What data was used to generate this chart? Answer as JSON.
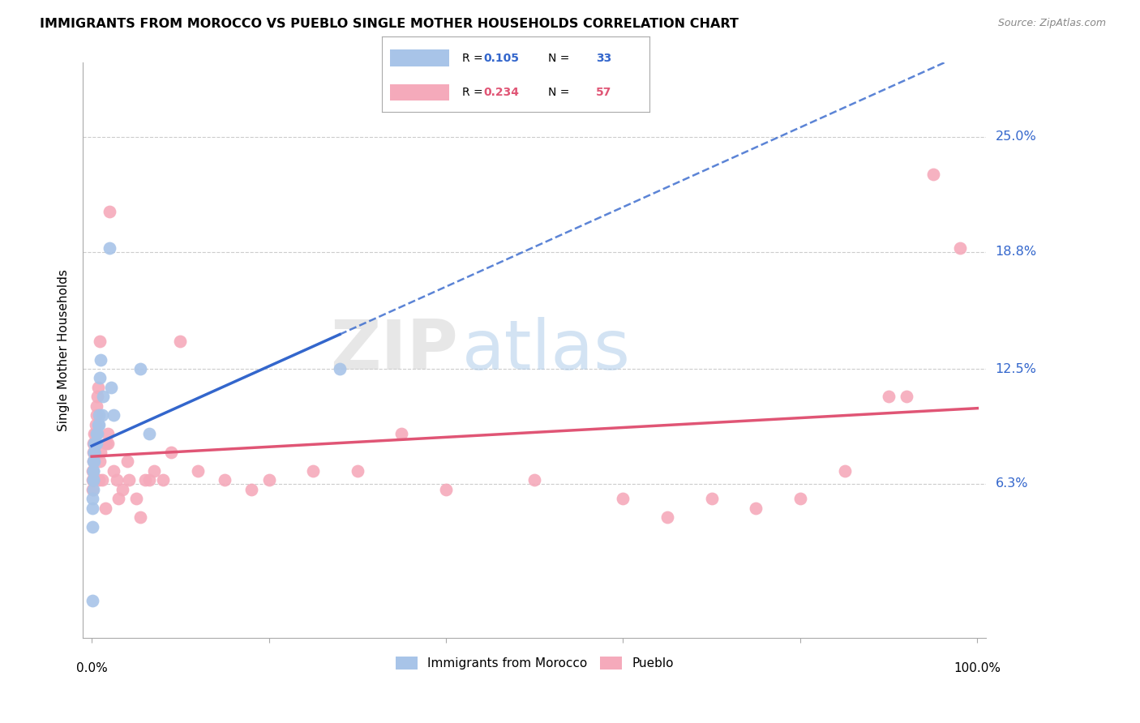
{
  "title": "IMMIGRANTS FROM MOROCCO VS PUEBLO SINGLE MOTHER HOUSEHOLDS CORRELATION CHART",
  "source": "Source: ZipAtlas.com",
  "ylabel": "Single Mother Households",
  "ytick_labels": [
    "25.0%",
    "18.8%",
    "12.5%",
    "6.3%"
  ],
  "ytick_values": [
    0.25,
    0.188,
    0.125,
    0.063
  ],
  "morocco_color": "#a8c4e8",
  "pueblo_color": "#f5aabb",
  "morocco_line_color": "#3366cc",
  "pueblo_line_color": "#e05575",
  "morocco_N": 33,
  "pueblo_N": 57,
  "morocco_R": 0.105,
  "pueblo_R": 0.234,
  "morocco_x": [
    0.001,
    0.001,
    0.001,
    0.001,
    0.002,
    0.002,
    0.002,
    0.002,
    0.002,
    0.002,
    0.003,
    0.003,
    0.003,
    0.003,
    0.003,
    0.004,
    0.004,
    0.005,
    0.005,
    0.006,
    0.007,
    0.008,
    0.008,
    0.009,
    0.01,
    0.012,
    0.013,
    0.02,
    0.022,
    0.025,
    0.055,
    0.065,
    0.28
  ],
  "morocco_y": [
    0.0,
    0.04,
    0.05,
    0.055,
    0.06,
    0.065,
    0.065,
    0.07,
    0.07,
    0.075,
    0.075,
    0.08,
    0.08,
    0.08,
    0.085,
    0.085,
    0.085,
    0.085,
    0.09,
    0.09,
    0.095,
    0.095,
    0.1,
    0.12,
    0.13,
    0.1,
    0.11,
    0.19,
    0.115,
    0.1,
    0.125,
    0.09,
    0.125
  ],
  "pueblo_x": [
    0.001,
    0.001,
    0.001,
    0.002,
    0.002,
    0.002,
    0.003,
    0.003,
    0.004,
    0.004,
    0.005,
    0.005,
    0.006,
    0.007,
    0.008,
    0.009,
    0.009,
    0.01,
    0.012,
    0.015,
    0.016,
    0.018,
    0.018,
    0.02,
    0.025,
    0.028,
    0.03,
    0.035,
    0.04,
    0.042,
    0.05,
    0.055,
    0.06,
    0.065,
    0.07,
    0.08,
    0.09,
    0.1,
    0.12,
    0.15,
    0.18,
    0.2,
    0.25,
    0.3,
    0.35,
    0.4,
    0.5,
    0.6,
    0.65,
    0.7,
    0.75,
    0.8,
    0.85,
    0.9,
    0.92,
    0.95,
    0.98
  ],
  "pueblo_y": [
    0.06,
    0.065,
    0.07,
    0.075,
    0.08,
    0.085,
    0.085,
    0.09,
    0.09,
    0.095,
    0.1,
    0.105,
    0.11,
    0.115,
    0.065,
    0.075,
    0.14,
    0.08,
    0.065,
    0.05,
    0.085,
    0.085,
    0.09,
    0.21,
    0.07,
    0.065,
    0.055,
    0.06,
    0.075,
    0.065,
    0.055,
    0.045,
    0.065,
    0.065,
    0.07,
    0.065,
    0.08,
    0.14,
    0.07,
    0.065,
    0.06,
    0.065,
    0.07,
    0.07,
    0.09,
    0.06,
    0.065,
    0.055,
    0.045,
    0.055,
    0.05,
    0.055,
    0.07,
    0.11,
    0.11,
    0.23,
    0.19
  ],
  "xmin": 0.0,
  "xmax": 1.0,
  "ymin": -0.02,
  "ymax": 0.29
}
